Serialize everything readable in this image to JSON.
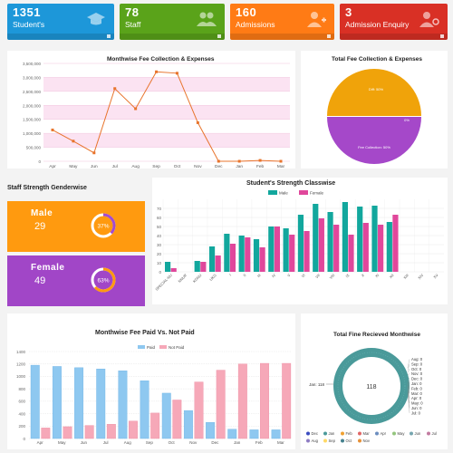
{
  "cards": [
    {
      "value": "1351",
      "label": "Student's",
      "color": "#1d97d9",
      "icon": "graduation-cap-icon"
    },
    {
      "value": "78",
      "label": "Staff",
      "color": "#5aa31a",
      "icon": "group-icon"
    },
    {
      "value": "160",
      "label": "Admissions",
      "color": "#ff7b15",
      "icon": "add-user-icon"
    },
    {
      "value": "3",
      "label": "Admission  Enquiry",
      "color": "#d93025",
      "icon": "user-search-icon"
    }
  ],
  "fee_chart": {
    "title": "Monthwise Fee Collection & Expenses",
    "months": [
      "Apr",
      "May",
      "Jun",
      "Jul",
      "Aug",
      "Sep",
      "Oct",
      "Nov",
      "Dec",
      "Jan",
      "Feb",
      "Mar"
    ],
    "yticks": [
      "0",
      "500,000",
      "1,000,000",
      "1,500,000",
      "2,000,000",
      "2,500,000",
      "3,000,000",
      "3,500,000"
    ]
  },
  "pie_chart": {
    "title": "Total Fee Collection & Expenses",
    "top_label": "Diff: 50%",
    "zero_label": "0%",
    "bottom_label": "Fee Collection: 50%"
  },
  "gender": {
    "title": "Staff Strength Genderwise",
    "male_label": "Male",
    "male_value": "29",
    "male_pct": "37%",
    "female_label": "Female",
    "female_value": "49",
    "female_pct": "63%"
  },
  "class_chart": {
    "title": "Student's Strength Classwise",
    "legend_male": "Male",
    "legend_female": "Female",
    "yticks": [
      "0",
      "10",
      "20",
      "30",
      "40",
      "50",
      "60",
      "70"
    ]
  },
  "paid_chart": {
    "title": "Monthwise Fee Paid Vs. Not Paid",
    "legend_paid": "Paid",
    "legend_notpaid": "Not Paid",
    "yticks": [
      "0",
      "200",
      "400",
      "600",
      "800",
      "1000",
      "1200",
      "1400"
    ]
  },
  "fine_chart": {
    "title": "Total Fine Recieved Monthwise",
    "center_value": "118",
    "left_label": "Jan: 118",
    "right_labels": [
      "Aug: 0",
      "Sep: 0",
      "Oct: 0",
      "Nov: 0",
      "Dec: 0",
      "Jan: 0",
      "Feb: 0",
      "Mar: 0",
      "Apr: 0",
      "May: 0",
      "Jun: 0",
      "Jul: 0"
    ],
    "legend": [
      {
        "name": "Dec",
        "color": "#3b4cc0"
      },
      {
        "name": "Jan",
        "color": "#4a9a9a"
      },
      {
        "name": "Feb",
        "color": "#f0a030"
      },
      {
        "name": "Mar",
        "color": "#e06666"
      },
      {
        "name": "Apr",
        "color": "#6c8ebf"
      },
      {
        "name": "May",
        "color": "#93c47d"
      },
      {
        "name": "Jun",
        "color": "#76a5af"
      },
      {
        "name": "Jul",
        "color": "#c27ba0"
      },
      {
        "name": "Aug",
        "color": "#8e7cc3"
      },
      {
        "name": "Sep",
        "color": "#ffd966"
      },
      {
        "name": "Oct",
        "color": "#45818e"
      },
      {
        "name": "Nov",
        "color": "#e69138"
      }
    ]
  },
  "chart_data": [
    {
      "type": "line",
      "title": "Monthwise Fee Collection & Expenses",
      "categories": [
        "Apr",
        "May",
        "Jun",
        "Jul",
        "Aug",
        "Sep",
        "Oct",
        "Nov",
        "Dec",
        "Jan",
        "Feb",
        "Mar"
      ],
      "values": [
        1120000,
        720000,
        300000,
        2600000,
        1880000,
        3200000,
        3150000,
        1380000,
        0,
        0,
        30000,
        0
      ],
      "ylim": [
        0,
        3500000
      ],
      "color": "#e8742c"
    },
    {
      "type": "pie",
      "title": "Total Fee Collection & Expenses",
      "slices": [
        {
          "name": "Diff",
          "value": 50,
          "color": "#f0a30a"
        },
        {
          "name": "Fee Collection",
          "value": 50,
          "color": "#a548c9"
        }
      ]
    },
    {
      "type": "bar",
      "title": "Student's Strength Classwise",
      "categories": [
        "SPECIAL-NU",
        "NNUR",
        "KGNU",
        "UKG",
        "I",
        "II",
        "III",
        "IV",
        "V",
        "VI",
        "VII",
        "VIII",
        "IX",
        "X",
        "XI",
        "XII",
        "XIII",
        "XIV",
        "XV"
      ],
      "series": [
        {
          "name": "Male",
          "color": "#12a79d",
          "values": [
            11,
            0,
            12,
            28,
            42,
            40,
            36,
            50,
            48,
            63,
            75,
            66,
            77,
            72,
            73,
            55,
            0,
            0,
            0
          ]
        },
        {
          "name": "Female",
          "color": "#e0479b",
          "values": [
            4,
            0,
            11,
            18,
            31,
            38,
            27,
            50,
            41,
            45,
            59,
            52,
            41,
            54,
            52,
            63,
            0,
            0,
            0
          ]
        }
      ],
      "ylim": [
        0,
        80
      ]
    },
    {
      "type": "bar",
      "title": "Monthwise Fee Paid Vs. Not Paid",
      "categories": [
        "Apr",
        "May",
        "Jun",
        "Jul",
        "Aug",
        "Sep",
        "Oct",
        "Nov",
        "Dec",
        "Jan",
        "Feb",
        "Mar"
      ],
      "series": [
        {
          "name": "Paid",
          "color": "#8ec8f0",
          "values": [
            1180,
            1160,
            1140,
            1120,
            1090,
            930,
            730,
            450,
            260,
            150,
            140,
            140
          ]
        },
        {
          "name": "Not Paid",
          "color": "#f6a8b8",
          "values": [
            170,
            190,
            210,
            230,
            280,
            410,
            620,
            910,
            1100,
            1200,
            1210,
            1210
          ]
        }
      ],
      "ylim": [
        0,
        1400
      ]
    },
    {
      "type": "pie",
      "title": "Total Fine Recieved Monthwise",
      "slices": [
        {
          "name": "Jan",
          "value": 118,
          "color": "#4a9a9a"
        }
      ]
    }
  ]
}
